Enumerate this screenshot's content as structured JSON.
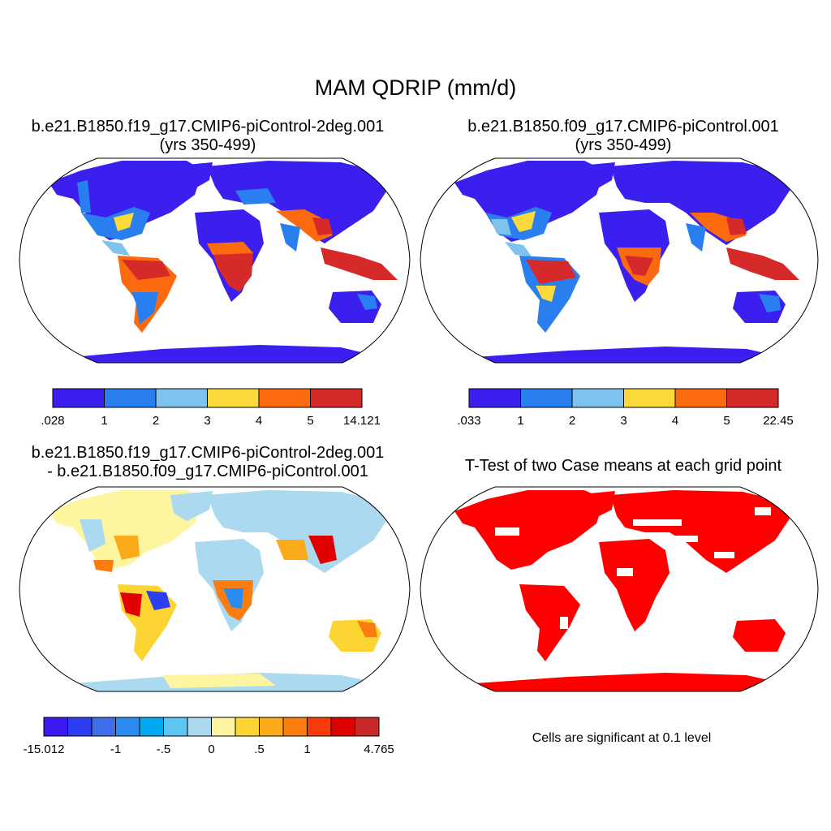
{
  "title": "MAM QDRIP (mm/d)",
  "panels": [
    {
      "id": "case1",
      "title_line1": "b.e21.B1850.f19_g17.CMIP6-piControl-2deg.001",
      "title_line2": "(yrs 350-499)"
    },
    {
      "id": "case2",
      "title_line1": "b.e21.B1850.f09_g17.CMIP6-piControl.001",
      "title_line2": "(yrs 350-499)"
    },
    {
      "id": "diff",
      "title_line1": "b.e21.B1850.f19_g17.CMIP6-piControl-2deg.001",
      "title_line2": "- b.e21.B1850.f09_g17.CMIP6-piControl.001"
    },
    {
      "id": "ttest",
      "title_line1": "T-Test of two Case means at each grid point",
      "title_line2": ""
    }
  ],
  "colorbars": {
    "case1": {
      "labels": [
        ".028",
        "1",
        "2",
        "3",
        "4",
        "5",
        "14.121"
      ],
      "colors": [
        "#3b1fef",
        "#2a7ff0",
        "#7ec2ee",
        "#fbd93b",
        "#fb6a0e",
        "#d6292a"
      ]
    },
    "case2": {
      "labels": [
        ".033",
        "1",
        "2",
        "3",
        "4",
        "5",
        "22.45"
      ],
      "colors": [
        "#3b1fef",
        "#2a7ff0",
        "#7ec2ee",
        "#fbd93b",
        "#fb6a0e",
        "#d6292a"
      ]
    },
    "diff": {
      "labels": [
        "-15.012",
        "-1",
        "-.5",
        "0",
        ".5",
        "1",
        "4.765"
      ],
      "colors": [
        "#3a1af0",
        "#2c3ef0",
        "#3f6ee8",
        "#2a8cf0",
        "#00aaf0",
        "#5ec4f0",
        "#aad9f0",
        "#fdf5a0",
        "#fcd532",
        "#fbaa1a",
        "#fb7d10",
        "#fb3a0a",
        "#e00000",
        "#c82a2a"
      ]
    }
  },
  "note": "Cells are significant at 0.1 level",
  "significance_color": "#ff0000"
}
